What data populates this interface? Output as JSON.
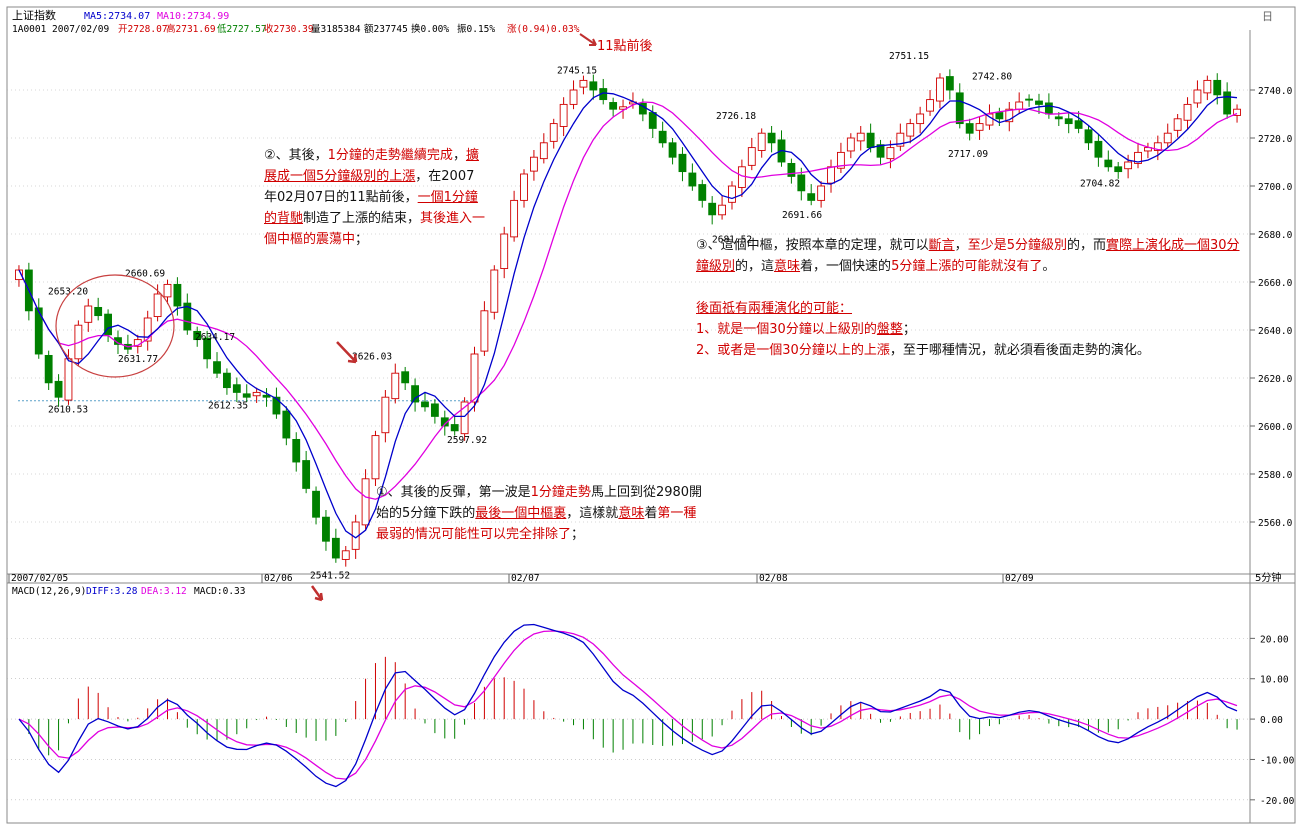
{
  "header": {
    "index_name": "上证指数",
    "ma5": "MA5:2734.07",
    "ma10": "MA10:2734.99",
    "line2": {
      "code_date": "1A0001 2007/02/09",
      "open": "开2728.07",
      "high": "高2731.69",
      "low": "低2727.57",
      "close": "收2730.39",
      "volume": "量3185384",
      "amount": "额237745",
      "turnover": "换0.00%",
      "amplitude": "振0.15%",
      "change": "涨(0.94)0.03%"
    },
    "corner_label": "日"
  },
  "colors": {
    "up": "#d00000",
    "down": "#008000",
    "ma5": "#0000cc",
    "ma10": "#e000e0",
    "grid": "#b0b0b0",
    "annotation_red": "#d00000"
  },
  "chart_data": [
    {
      "type": "candlestick",
      "title": "上证指数 5分钟",
      "interval_label": "5分钟",
      "ylim": [
        2540,
        2760
      ],
      "yticks": [
        "2740.0",
        "2720.0",
        "2700.0",
        "2680.0",
        "2660.0",
        "2640.0",
        "2620.0",
        "2600.0",
        "2580.0",
        "2560.0"
      ],
      "date_labels": [
        "2007/02/05",
        "02/06",
        "02/07",
        "02/08",
        "02/09"
      ],
      "price_labels": [
        {
          "text": "2653.20",
          "value": 2653.2
        },
        {
          "text": "2660.69",
          "value": 2660.69
        },
        {
          "text": "2631.77",
          "value": 2631.77
        },
        {
          "text": "2610.53",
          "value": 2610.53
        },
        {
          "text": "2634.17",
          "value": 2634.17
        },
        {
          "text": "2612.35",
          "value": 2612.35
        },
        {
          "text": "2541.52",
          "value": 2541.52
        },
        {
          "text": "2626.03",
          "value": 2626.03
        },
        {
          "text": "2597.92",
          "value": 2597.92
        },
        {
          "text": "2745.15",
          "value": 2745.15
        },
        {
          "text": "2726.18",
          "value": 2726.18
        },
        {
          "text": "2681.52",
          "value": 2681.52
        },
        {
          "text": "2691.66",
          "value": 2691.66
        },
        {
          "text": "2751.15",
          "value": 2751.15
        },
        {
          "text": "2717.09",
          "value": 2717.09
        },
        {
          "text": "2742.80",
          "value": 2742.8
        },
        {
          "text": "2704.82",
          "value": 2704.82
        }
      ],
      "reference_line": 2610.53,
      "close_series": [
        2665,
        2648,
        2630,
        2618,
        2612,
        2628,
        2642,
        2650,
        2646,
        2638,
        2634,
        2632,
        2636,
        2645,
        2655,
        2659,
        2650,
        2640,
        2636,
        2628,
        2622,
        2616,
        2614,
        2612,
        2614,
        2612,
        2605,
        2595,
        2585,
        2574,
        2562,
        2552,
        2545,
        2548,
        2560,
        2578,
        2596,
        2612,
        2622,
        2618,
        2610,
        2608,
        2604,
        2600,
        2598,
        2610,
        2630,
        2648,
        2665,
        2680,
        2694,
        2705,
        2712,
        2718,
        2726,
        2734,
        2740,
        2744,
        2740,
        2736,
        2732,
        2733,
        2735,
        2730,
        2724,
        2718,
        2712,
        2706,
        2700,
        2694,
        2688,
        2692,
        2700,
        2708,
        2716,
        2722,
        2718,
        2710,
        2704,
        2698,
        2694,
        2700,
        2708,
        2714,
        2720,
        2722,
        2716,
        2712,
        2716,
        2722,
        2726,
        2730,
        2736,
        2745,
        2740,
        2726,
        2722,
        2726,
        2730,
        2728,
        2732,
        2735,
        2736,
        2734,
        2730,
        2728,
        2726,
        2724,
        2718,
        2712,
        2708,
        2706,
        2710,
        2714,
        2716,
        2718,
        2722,
        2728,
        2734,
        2740,
        2744,
        2738,
        2730,
        2732
      ]
    },
    {
      "type": "macd",
      "title": "MACD(12,26,9)",
      "diff_label": "DIFF:3.28",
      "dea_label": "DEA:3.12",
      "macd_label": "MACD:0.33",
      "ylim": [
        -25,
        30
      ],
      "yticks": [
        "20.00",
        "10.00",
        "0.00",
        "-10.00",
        "-20.00"
      ]
    }
  ],
  "annotations": {
    "note2": [
      "②、其後，",
      "1分鐘的走勢繼續完成",
      "，",
      "擴展成一個5分鐘級別的上漲",
      "，在2007年02月07日的11點前後，",
      "一個1分鐘的背馳",
      "制造了上漲的結束，",
      "其後進入一個中樞的震蕩中",
      "；"
    ],
    "note_top": "11點前後",
    "note3": [
      "③、這個中樞，按照本章的定理，就可以",
      "斷言",
      "，",
      "至少是5分鐘級別",
      "的，而",
      "實際上演化成一個30分鐘級別",
      "的，這",
      "意味",
      "着，一個快速的",
      "5分鐘上漲的可能就沒有了",
      "。"
    ],
    "note4_title": "後面祗有兩種演化的可能：",
    "note4_item1": [
      "1、就是一個30分鐘以上級別的",
      "盤整",
      "；"
    ],
    "note4_item2": [
      "2、或者是一個30分鐘以上的",
      "上漲",
      "，至于哪種情況，就必須看後面走勢的演化。"
    ],
    "note1": [
      "①、其後的反彈，第一波是",
      "1分鐘走勢",
      "馬上回到從2980開始的5分鐘下跌的",
      "最後一個中樞裏",
      "，這樣就",
      "意味",
      "着",
      "第一種最弱的情況可能性可以完全排除了",
      "；"
    ]
  }
}
